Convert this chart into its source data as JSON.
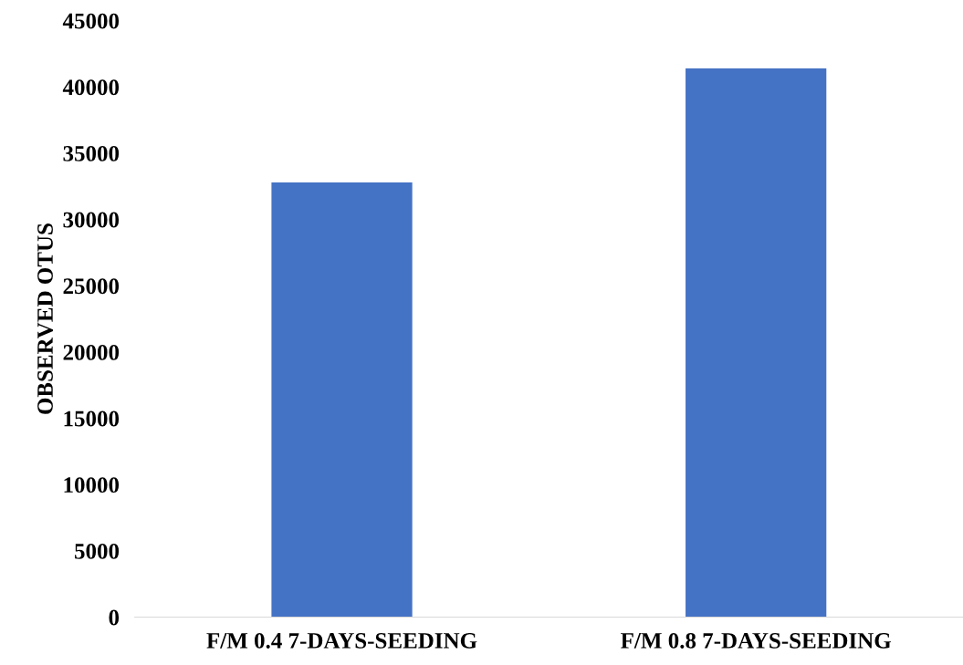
{
  "chart_data": {
    "type": "bar",
    "ylabel": "OBSERVED OTUS",
    "categories": [
      "F/M 0.4 7-DAYS-SEEDING",
      "F/M 0.8 7-DAYS-SEEDING"
    ],
    "values": [
      32800,
      41400
    ],
    "color": "#4472c4",
    "ylim": [
      0,
      45000
    ],
    "yticks": [
      0,
      5000,
      10000,
      15000,
      20000,
      25000,
      30000,
      35000,
      40000,
      45000
    ],
    "grid": false
  }
}
